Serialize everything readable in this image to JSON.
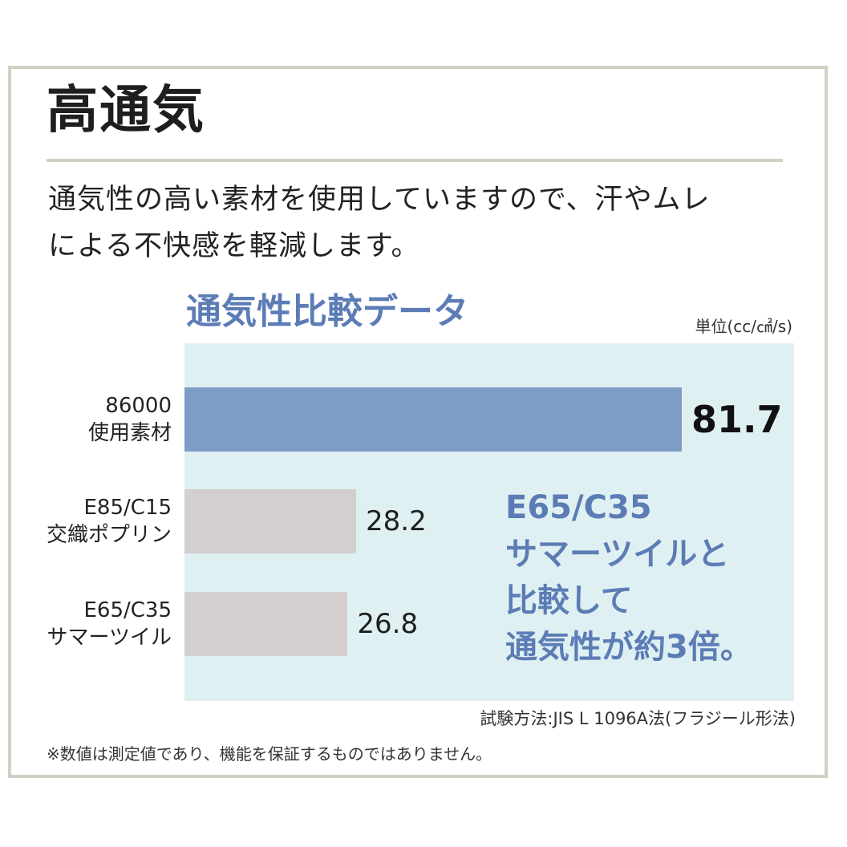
{
  "header": {
    "title": "高通気",
    "description_line1": "通気性の高い素材を使用していますので、汗やムレ",
    "description_line2": "による不快感を軽減します。"
  },
  "chart_data": {
    "type": "bar",
    "orientation": "horizontal",
    "title": "通気性比較データ",
    "unit": "単位(cc/㎠/s)",
    "categories": [
      [
        "86000",
        "使用素材"
      ],
      [
        "E85/C15",
        "交織ポプリン"
      ],
      [
        "E65/C35",
        "サマーツイル"
      ]
    ],
    "values": [
      81.7,
      28.2,
      26.8
    ],
    "value_labels": [
      "81.7",
      "28.2",
      "26.8"
    ],
    "bar_colors": [
      "#7f9cc6",
      "#d3cfce",
      "#d3cfce"
    ],
    "highlight_index": 0,
    "xlim": [
      0,
      81.7
    ],
    "grid": false,
    "plot_background": "#dff0f2",
    "annotation": [
      "E65/C35",
      "サマーツイルと",
      "比較して",
      "通気性が約3倍。"
    ]
  },
  "footer": {
    "method": "試験方法:JIS L 1096A法(フラジール形法)",
    "note": "※数値は測定値であり、機能を保証するものではありません。"
  },
  "colors": {
    "accent": "#5c7cb6",
    "frame": "#cfd1c3",
    "text": "#222222"
  }
}
